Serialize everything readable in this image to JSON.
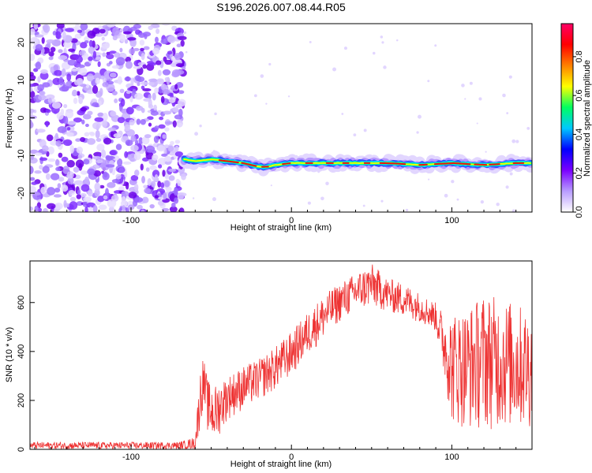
{
  "title": "S196.2026.007.08.44.R05",
  "chart_data": [
    {
      "type": "heatmap",
      "xlabel": "Height of straight line (km)",
      "ylabel": "Frequency (Hz)",
      "xlim": [
        -163,
        150
      ],
      "ylim": [
        -25,
        25
      ],
      "xticks": [
        -100,
        0,
        100
      ],
      "yticks": [
        -20,
        -10,
        0,
        10,
        20
      ],
      "colorbar": {
        "label": "Normalized spectral amplitude",
        "range": [
          0,
          0.97
        ],
        "ticks": [
          0.0,
          0.2,
          0.4,
          0.6,
          0.8
        ],
        "colors": [
          "#ffffff",
          "#b89cff",
          "#7a00ff",
          "#0000ff",
          "#00c8ff",
          "#00ff60",
          "#ffff00",
          "#ff8000",
          "#ff0000",
          "#ff0066"
        ]
      },
      "noise_region_x": [
        -163,
        -67
      ],
      "ridge": {
        "x": [
          -67,
          -60,
          -50,
          -40,
          -30,
          -20,
          -15,
          -10,
          0,
          10,
          20,
          40,
          60,
          80,
          100,
          120,
          140,
          150
        ],
        "y": [
          -11,
          -11.5,
          -11,
          -11.5,
          -12,
          -13,
          -13,
          -12.5,
          -12,
          -12,
          -12,
          -12,
          -12,
          -12.5,
          -12,
          -12.5,
          -12,
          -12
        ]
      }
    },
    {
      "type": "line",
      "xlabel": "Height of straight line (km)",
      "ylabel": "SNR (10 * v/v)",
      "xlim": [
        -163,
        150
      ],
      "ylim": [
        0,
        770
      ],
      "xticks": [
        -100,
        0,
        100
      ],
      "yticks": [
        0,
        200,
        400,
        600
      ],
      "series_color": "#ee3333",
      "envelope": {
        "x": [
          -163,
          -70,
          -60,
          -57,
          -55,
          -52,
          -48,
          -40,
          -30,
          -20,
          -10,
          0,
          10,
          20,
          30,
          40,
          50,
          60,
          70,
          80,
          90,
          95,
          100,
          110,
          120,
          130,
          140,
          150
        ],
        "low": [
          0,
          0,
          0,
          80,
          180,
          60,
          20,
          120,
          160,
          200,
          240,
          300,
          380,
          450,
          520,
          560,
          580,
          560,
          540,
          520,
          480,
          300,
          100,
          80,
          80,
          80,
          80,
          80
        ],
        "high": [
          30,
          30,
          50,
          320,
          380,
          280,
          260,
          300,
          340,
          370,
          420,
          480,
          560,
          630,
          680,
          720,
          760,
          700,
          680,
          640,
          600,
          560,
          560,
          580,
          640,
          620,
          600,
          560
        ]
      }
    }
  ]
}
